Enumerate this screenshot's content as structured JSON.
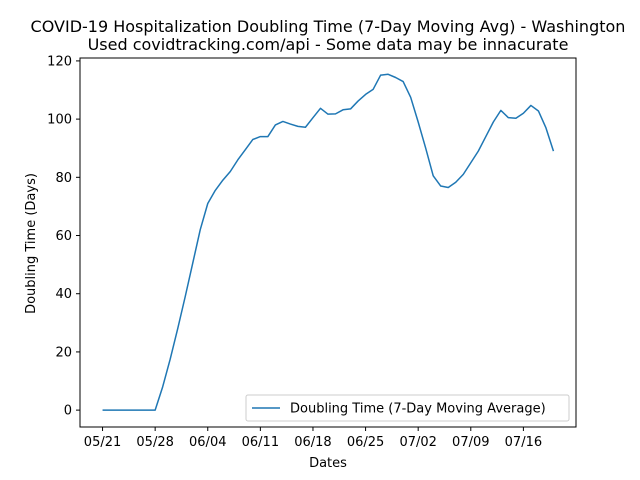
{
  "chart_data": {
    "type": "line",
    "title": "COVID-19 Hospitalization Doubling Time (7-Day Moving Avg) - Washington",
    "subtitle": "Used covidtracking.com/api - Some data may be innacurate",
    "xlabel": "Dates",
    "ylabel": "Doubling Time (Days)",
    "x_tick_labels": [
      "05/21",
      "05/28",
      "06/04",
      "06/11",
      "06/18",
      "06/25",
      "07/02",
      "07/09",
      "07/16"
    ],
    "y_ticks": [
      0,
      20,
      40,
      60,
      80,
      100,
      120
    ],
    "xlim": [
      -3,
      63
    ],
    "ylim": [
      -5.8,
      121
    ],
    "grid": false,
    "legend_position": "lower-right",
    "colors": {
      "series": "#1f77b4",
      "axis": "#000000",
      "legend_frame": "#cccccc"
    },
    "series": [
      {
        "name": "Doubling Time (7-Day Moving Average)",
        "x": [
          0,
          1,
          2,
          3,
          4,
          5,
          6,
          7,
          8,
          9,
          10,
          11,
          12,
          13,
          14,
          15,
          16,
          17,
          18,
          19,
          20,
          21,
          22,
          23,
          24,
          25,
          26,
          27,
          28,
          29,
          30,
          31,
          32,
          33,
          34,
          35,
          36,
          37,
          38,
          39,
          40,
          41,
          42,
          43,
          44,
          45,
          46,
          47,
          48,
          49,
          50,
          51,
          52,
          53,
          54,
          55,
          56,
          57,
          58,
          59,
          60
        ],
        "y": [
          0,
          0,
          0,
          0,
          0,
          0,
          0,
          0,
          8,
          17.5,
          28,
          39,
          50.5,
          62,
          71,
          75.5,
          79,
          82,
          86,
          89.5,
          93,
          94,
          94,
          98,
          99.2,
          98.3,
          97.5,
          97.2,
          100.5,
          103.7,
          101.7,
          101.8,
          103.2,
          103.5,
          106.2,
          108.5,
          110.2,
          115.1,
          115.4,
          114.3,
          112.9,
          107.5,
          99,
          90,
          80.5,
          77,
          76.5,
          78.3,
          81,
          85,
          89,
          94,
          99,
          103,
          100.5,
          100.3,
          102,
          104.7,
          102.8,
          97,
          89
        ]
      }
    ]
  }
}
